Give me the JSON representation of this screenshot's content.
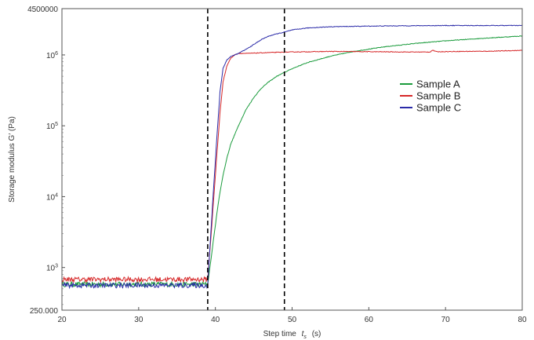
{
  "chart_data": {
    "type": "line",
    "xlabel": "Step time",
    "xlabel_symbol": "t",
    "xlabel_sub": "s",
    "xlabel_unit": "(s)",
    "ylabel": "Storage modulus G′ (Pa)",
    "xlim": [
      20,
      80
    ],
    "ylim": [
      250,
      4500000
    ],
    "yscale": "log",
    "x_ticks": [
      20,
      30,
      40,
      50,
      60,
      70,
      80
    ],
    "x_tick_labels": [
      "20",
      "30",
      "40",
      "50",
      "60",
      "70",
      "80"
    ],
    "y_ticks": [
      {
        "value": 250,
        "label": "250.000",
        "exp": ""
      },
      {
        "value": 1000,
        "label": "10",
        "exp": "3"
      },
      {
        "value": 10000,
        "label": "10",
        "exp": "4"
      },
      {
        "value": 100000,
        "label": "10",
        "exp": "5"
      },
      {
        "value": 1000000,
        "label": "10",
        "exp": "6"
      },
      {
        "value": 4500000,
        "label": "4500000",
        "exp": ""
      }
    ],
    "vertical_lines": [
      39,
      49
    ],
    "grid": false,
    "legend_position": "right",
    "series": [
      {
        "name": "Sample A",
        "color": "#1a9b3c",
        "base": 580,
        "x": [
          39.0,
          39.5,
          40.0,
          40.5,
          41.0,
          41.5,
          42.0,
          43.0,
          44.0,
          45.0,
          46.0,
          47.0,
          48.0,
          50.0,
          52.0,
          55.0,
          58.0,
          62.0,
          66.0,
          70.0,
          75.0,
          80.0
        ],
        "y": [
          580,
          1500,
          4000,
          10000,
          20000,
          35000,
          55000,
          100000,
          170000,
          250000,
          340000,
          420000,
          500000,
          640000,
          780000,
          960000,
          1120000,
          1300000,
          1450000,
          1580000,
          1720000,
          1850000
        ]
      },
      {
        "name": "Sample B",
        "color": "#d62728",
        "base": 680,
        "x": [
          39.0,
          39.4,
          39.8,
          40.2,
          40.6,
          41.0,
          41.5,
          42.0,
          42.5,
          43.0,
          44.0,
          45.0,
          47.0,
          50.0,
          55.0,
          60.0,
          65.0,
          68.0,
          68.3,
          68.8,
          72.0,
          76.0,
          80.0
        ],
        "y": [
          680,
          2500,
          10000,
          40000,
          150000,
          420000,
          700000,
          900000,
          1000000,
          1050000,
          1050000,
          1060000,
          1080000,
          1100000,
          1120000,
          1110000,
          1100000,
          1100000,
          1170000,
          1110000,
          1120000,
          1130000,
          1160000
        ]
      },
      {
        "name": "Sample C",
        "color": "#2a2aa8",
        "base": 560,
        "x": [
          39.0,
          39.4,
          39.8,
          40.2,
          40.6,
          41.0,
          41.5,
          42.0,
          43.0,
          44.0,
          45.0,
          46.0,
          47.0,
          48.0,
          49.0,
          50.0,
          52.0,
          55.0,
          60.0,
          65.0,
          70.0,
          75.0,
          80.0
        ],
        "y": [
          560,
          3000,
          15000,
          70000,
          300000,
          650000,
          850000,
          950000,
          1050000,
          1200000,
          1400000,
          1650000,
          1850000,
          1980000,
          2100000,
          2250000,
          2400000,
          2500000,
          2550000,
          2580000,
          2600000,
          2600000,
          2600000
        ]
      }
    ]
  }
}
